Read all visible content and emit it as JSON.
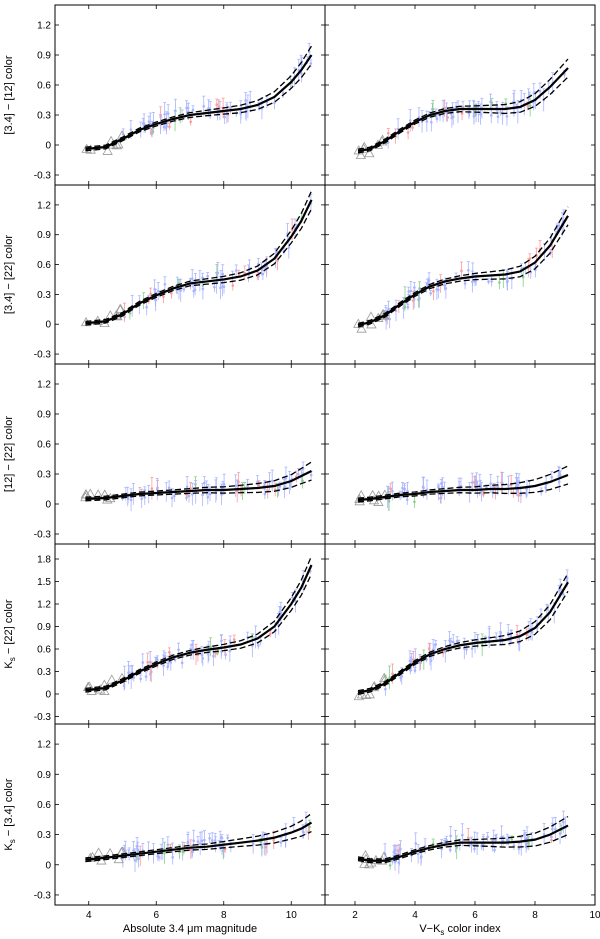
{
  "figure": {
    "xlabel_left_text": "Absolute 3.4 μm magnitude",
    "xlabel_right_text": "V−K",
    "xlabel_right_sub": "s",
    "xlabel_right_tail": " color index"
  },
  "row_labels": [
    {
      "text": "[3.4] − [12] color"
    },
    {
      "text": "[3.4] − [22] color"
    },
    {
      "text": "[12] − [22] color"
    },
    {
      "text": "K",
      "sub": "s",
      "tail": " − [22] color"
    },
    {
      "text": "K",
      "sub": "s",
      "tail": " − [3.4] color"
    }
  ],
  "colors": {
    "fit": "#000000",
    "points_blue": "#a8b4ff",
    "points_red": "#ff9a9a",
    "points_green": "#86d086",
    "triangles": "#9a9a9a"
  },
  "chart_data": [
    {
      "type": "line",
      "row": 1,
      "panel": "left",
      "xlim": [
        3.0,
        11.0
      ],
      "ylim": [
        -0.4,
        1.4
      ],
      "yticks": [
        -0.3,
        0,
        0.3,
        0.6,
        0.9,
        1.2
      ],
      "xticks": [
        4,
        6,
        8,
        10
      ],
      "series": [
        {
          "x": [
            3.9,
            4.5,
            5.0,
            5.5,
            6.0,
            6.5,
            7.0,
            7.5,
            8.0,
            8.5,
            9.0,
            9.5,
            10.0,
            10.3,
            10.6
          ],
          "y": [
            -0.04,
            -0.02,
            0.06,
            0.15,
            0.21,
            0.26,
            0.3,
            0.32,
            0.34,
            0.36,
            0.4,
            0.48,
            0.63,
            0.75,
            0.9
          ]
        }
      ]
    },
    {
      "type": "line",
      "row": 1,
      "panel": "right",
      "xlim": [
        1.0,
        10.0
      ],
      "ylim": [
        -0.4,
        1.4
      ],
      "yticks": [
        -0.3,
        0,
        0.3,
        0.6,
        0.9,
        1.2
      ],
      "xticks": [
        2,
        4,
        6,
        8,
        10
      ],
      "series": [
        {
          "x": [
            2.1,
            2.5,
            3.0,
            3.5,
            4.0,
            4.5,
            5.0,
            5.5,
            6.0,
            6.5,
            7.0,
            7.5,
            8.0,
            8.5,
            9.1
          ],
          "y": [
            -0.06,
            -0.04,
            0.04,
            0.14,
            0.23,
            0.3,
            0.34,
            0.36,
            0.36,
            0.36,
            0.36,
            0.38,
            0.45,
            0.58,
            0.77
          ]
        }
      ]
    },
    {
      "type": "line",
      "row": 2,
      "panel": "left",
      "xlim": [
        3.0,
        11.0
      ],
      "ylim": [
        -0.4,
        1.4
      ],
      "yticks": [
        -0.3,
        0,
        0.3,
        0.6,
        0.9,
        1.2
      ],
      "xticks": [
        4,
        6,
        8,
        10
      ],
      "series": [
        {
          "x": [
            3.9,
            4.5,
            5.0,
            5.5,
            6.0,
            6.5,
            7.0,
            7.5,
            8.0,
            8.5,
            9.0,
            9.5,
            10.0,
            10.3,
            10.6
          ],
          "y": [
            0.01,
            0.03,
            0.1,
            0.21,
            0.29,
            0.36,
            0.41,
            0.43,
            0.45,
            0.48,
            0.54,
            0.66,
            0.88,
            1.04,
            1.25
          ]
        }
      ]
    },
    {
      "type": "line",
      "row": 2,
      "panel": "right",
      "xlim": [
        1.0,
        10.0
      ],
      "ylim": [
        -0.4,
        1.4
      ],
      "yticks": [
        -0.3,
        0,
        0.3,
        0.6,
        0.9,
        1.2
      ],
      "xticks": [
        2,
        4,
        6,
        8,
        10
      ],
      "series": [
        {
          "x": [
            2.1,
            2.5,
            3.0,
            3.5,
            4.0,
            4.5,
            5.0,
            5.5,
            6.0,
            6.5,
            7.0,
            7.5,
            8.0,
            8.5,
            9.1
          ],
          "y": [
            -0.01,
            0.02,
            0.09,
            0.2,
            0.3,
            0.38,
            0.43,
            0.46,
            0.48,
            0.49,
            0.5,
            0.53,
            0.62,
            0.79,
            1.09
          ]
        }
      ]
    },
    {
      "type": "line",
      "row": 3,
      "panel": "left",
      "xlim": [
        3.0,
        11.0
      ],
      "ylim": [
        -0.4,
        1.4
      ],
      "yticks": [
        -0.3,
        0,
        0.3,
        0.6,
        0.9,
        1.2
      ],
      "xticks": [
        4,
        6,
        8,
        10
      ],
      "series": [
        {
          "x": [
            3.9,
            4.5,
            5.0,
            5.5,
            6.0,
            6.5,
            7.0,
            7.5,
            8.0,
            8.5,
            9.0,
            9.5,
            10.0,
            10.3,
            10.6
          ],
          "y": [
            0.05,
            0.06,
            0.08,
            0.1,
            0.11,
            0.12,
            0.13,
            0.14,
            0.14,
            0.15,
            0.16,
            0.18,
            0.23,
            0.28,
            0.33
          ]
        }
      ]
    },
    {
      "type": "line",
      "row": 3,
      "panel": "right",
      "xlim": [
        1.0,
        10.0
      ],
      "ylim": [
        -0.4,
        1.4
      ],
      "yticks": [
        -0.3,
        0,
        0.3,
        0.6,
        0.9,
        1.2
      ],
      "xticks": [
        2,
        4,
        6,
        8,
        10
      ],
      "series": [
        {
          "x": [
            2.1,
            2.5,
            3.0,
            3.5,
            4.0,
            4.5,
            5.0,
            5.5,
            6.0,
            6.5,
            7.0,
            7.5,
            8.0,
            8.5,
            9.1
          ],
          "y": [
            0.04,
            0.05,
            0.07,
            0.09,
            0.1,
            0.12,
            0.13,
            0.14,
            0.14,
            0.15,
            0.15,
            0.16,
            0.18,
            0.22,
            0.29
          ]
        }
      ]
    },
    {
      "type": "line",
      "row": 4,
      "panel": "left",
      "xlim": [
        3.0,
        11.0
      ],
      "ylim": [
        -0.4,
        2.0
      ],
      "yticks": [
        -0.3,
        0,
        0.3,
        0.6,
        0.9,
        1.2,
        1.5,
        1.8
      ],
      "xticks": [
        4,
        6,
        8,
        10
      ],
      "series": [
        {
          "x": [
            3.9,
            4.5,
            5.0,
            5.5,
            6.0,
            6.5,
            7.0,
            7.5,
            8.0,
            8.5,
            9.0,
            9.5,
            10.0,
            10.3,
            10.6
          ],
          "y": [
            0.05,
            0.08,
            0.18,
            0.3,
            0.4,
            0.49,
            0.55,
            0.59,
            0.62,
            0.66,
            0.74,
            0.9,
            1.2,
            1.42,
            1.72
          ]
        }
      ]
    },
    {
      "type": "line",
      "row": 4,
      "panel": "right",
      "xlim": [
        1.0,
        10.0
      ],
      "ylim": [
        -0.4,
        2.0
      ],
      "yticks": [
        -0.3,
        0,
        0.3,
        0.6,
        0.9,
        1.2,
        1.5,
        1.8
      ],
      "xticks": [
        2,
        4,
        6,
        8,
        10
      ],
      "series": [
        {
          "x": [
            2.1,
            2.5,
            3.0,
            3.5,
            4.0,
            4.5,
            5.0,
            5.5,
            6.0,
            6.5,
            7.0,
            7.5,
            8.0,
            8.5,
            9.1
          ],
          "y": [
            0.02,
            0.05,
            0.14,
            0.28,
            0.42,
            0.53,
            0.6,
            0.65,
            0.68,
            0.7,
            0.72,
            0.77,
            0.88,
            1.09,
            1.49
          ]
        }
      ]
    },
    {
      "type": "line",
      "row": 5,
      "panel": "left",
      "xlim": [
        3.0,
        11.0
      ],
      "ylim": [
        -0.4,
        1.4
      ],
      "yticks": [
        -0.3,
        0,
        0.3,
        0.6,
        0.9,
        1.2
      ],
      "xticks": [
        4,
        6,
        8,
        10
      ],
      "series": [
        {
          "x": [
            3.9,
            4.5,
            5.0,
            5.5,
            6.0,
            6.5,
            7.0,
            7.5,
            8.0,
            8.5,
            9.0,
            9.5,
            10.0,
            10.3,
            10.6
          ],
          "y": [
            0.05,
            0.07,
            0.09,
            0.11,
            0.13,
            0.15,
            0.17,
            0.18,
            0.2,
            0.22,
            0.24,
            0.27,
            0.32,
            0.36,
            0.42
          ]
        }
      ]
    },
    {
      "type": "line",
      "row": 5,
      "panel": "right",
      "xlim": [
        1.0,
        10.0
      ],
      "ylim": [
        -0.4,
        1.4
      ],
      "yticks": [
        -0.3,
        0,
        0.3,
        0.6,
        0.9,
        1.2
      ],
      "xticks": [
        2,
        4,
        6,
        8,
        10
      ],
      "series": [
        {
          "x": [
            2.1,
            2.5,
            3.0,
            3.5,
            4.0,
            4.5,
            5.0,
            5.5,
            6.0,
            6.5,
            7.0,
            7.5,
            8.0,
            8.5,
            9.1
          ],
          "y": [
            0.06,
            0.04,
            0.04,
            0.08,
            0.13,
            0.17,
            0.2,
            0.22,
            0.22,
            0.22,
            0.22,
            0.23,
            0.25,
            0.3,
            0.39
          ]
        }
      ]
    }
  ]
}
